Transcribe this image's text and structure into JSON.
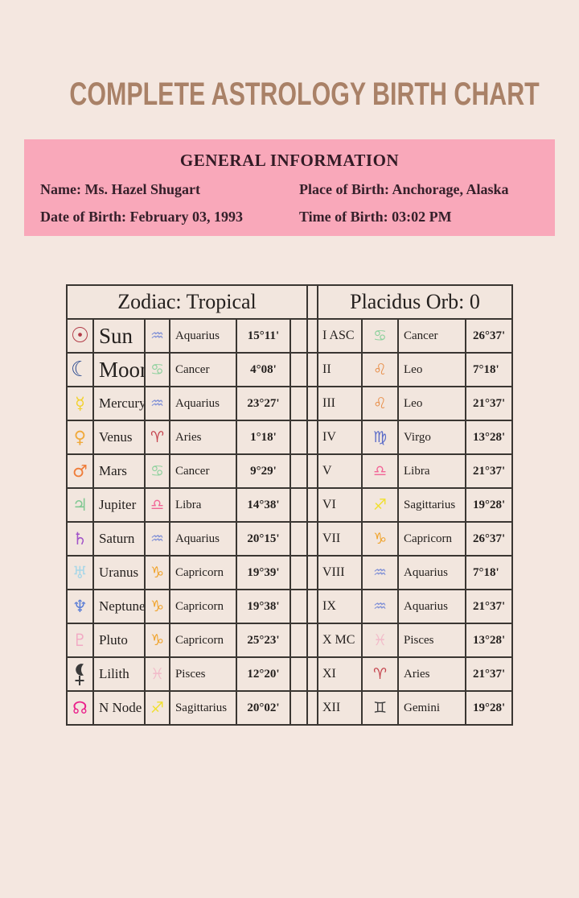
{
  "title": "COMPLETE ASTROLOGY BIRTH CHART",
  "general": {
    "heading": "GENERAL INFORMATION",
    "name": "Name: Ms. Hazel Shugart",
    "date_of_birth": "Date of Birth: February 03, 1993",
    "place_of_birth": "Place of Birth: Anchorage, Alaska",
    "time_of_birth": "Time of Birth: 03:02 PM"
  },
  "zodiac": {
    "header": "Zodiac: Tropical",
    "rows": [
      {
        "icon": "sun-icon",
        "glyph": "☉",
        "glyph_color": "#b23b47",
        "planet": "Sun",
        "sign_icon": "aquarius-icon",
        "sign_glyph": "♒",
        "sign_color": "#8191d6",
        "sign": "Aquarius",
        "degrees": "15°11'"
      },
      {
        "icon": "moon-icon",
        "glyph": "☾",
        "glyph_color": "#2f4e92",
        "planet": "Moon",
        "sign_icon": "cancer-icon",
        "sign_glyph": "♋",
        "sign_color": "#8fd19e",
        "sign": "Cancer",
        "degrees": "4°08'"
      },
      {
        "icon": "mercury-icon",
        "glyph": "☿",
        "glyph_color": "#f2d12e",
        "planet": "Mercury",
        "sign_icon": "aquarius-icon",
        "sign_glyph": "♒",
        "sign_color": "#8191d6",
        "sign": "Aquarius",
        "degrees": "23°27'"
      },
      {
        "icon": "venus-icon",
        "glyph": "♀",
        "glyph_color": "#f0a93a",
        "planet": "Venus",
        "sign_icon": "aries-icon",
        "sign_glyph": "♈",
        "sign_color": "#c4414b",
        "sign": "Aries",
        "degrees": "1°18'"
      },
      {
        "icon": "mars-icon",
        "glyph": "♂",
        "glyph_color": "#ef7d3a",
        "planet": "Mars",
        "sign_icon": "cancer-icon",
        "sign_glyph": "♋",
        "sign_color": "#8fd19e",
        "sign": "Cancer",
        "degrees": "9°29'"
      },
      {
        "icon": "jupiter-icon",
        "glyph": "♃",
        "glyph_color": "#82c893",
        "planet": "Jupiter",
        "sign_icon": "libra-icon",
        "sign_glyph": "♎",
        "sign_color": "#f26597",
        "sign": "Libra",
        "degrees": "14°38'"
      },
      {
        "icon": "saturn-icon",
        "glyph": "♄",
        "glyph_color": "#a254c8",
        "planet": "Saturn",
        "sign_icon": "aquarius-icon",
        "sign_glyph": "♒",
        "sign_color": "#8191d6",
        "sign": "Aquarius",
        "degrees": "20°15'"
      },
      {
        "icon": "uranus-icon",
        "glyph": "♅",
        "glyph_color": "#a9d7e8",
        "planet": "Uranus",
        "sign_icon": "capricorn-icon",
        "sign_glyph": "♑",
        "sign_color": "#f0a42e",
        "sign": "Capricorn",
        "degrees": "19°39'"
      },
      {
        "icon": "neptune-icon",
        "glyph": "♆",
        "glyph_color": "#5c7fd6",
        "planet": "Neptune",
        "sign_icon": "capricorn-icon",
        "sign_glyph": "♑",
        "sign_color": "#f0a42e",
        "sign": "Capricorn",
        "degrees": "19°38'"
      },
      {
        "icon": "pluto-icon",
        "glyph": "♇",
        "glyph_color": "#f2a9c4",
        "planet": "Pluto",
        "sign_icon": "capricorn-icon",
        "sign_glyph": "♑",
        "sign_color": "#f0a42e",
        "sign": "Capricorn",
        "degrees": "25°23'"
      },
      {
        "icon": "lilith-icon",
        "glyph": "⚸",
        "glyph_color": "#3a3a3a",
        "planet": "Lilith",
        "sign_icon": "pisces-icon",
        "sign_glyph": "♓",
        "sign_color": "#f2bcca",
        "sign": "Pisces",
        "degrees": "12°20'"
      },
      {
        "icon": "north-node-icon",
        "glyph": "☊",
        "glyph_color": "#ea1f8a",
        "planet": "N Node",
        "sign_icon": "sagittarius-icon",
        "sign_glyph": "♐",
        "sign_color": "#f0e030",
        "sign": "Sagittarius",
        "degrees": "20°02'"
      }
    ]
  },
  "houses": {
    "header": "Placidus Orb: 0",
    "rows": [
      {
        "house": "I ASC",
        "sign_icon": "cancer-icon",
        "sign_glyph": "♋",
        "sign_color": "#8fd19e",
        "sign": "Cancer",
        "degrees": "26°37'"
      },
      {
        "house": "II",
        "sign_icon": "leo-icon",
        "sign_glyph": "♌",
        "sign_color": "#e8914e",
        "sign": "Leo",
        "degrees": "7°18'"
      },
      {
        "house": "III",
        "sign_icon": "leo-icon",
        "sign_glyph": "♌",
        "sign_color": "#e8914e",
        "sign": "Leo",
        "degrees": "21°37'"
      },
      {
        "house": "IV",
        "sign_icon": "virgo-icon",
        "sign_glyph": "♍",
        "sign_color": "#5b6cc8",
        "sign": "Virgo",
        "degrees": "13°28'"
      },
      {
        "house": "V",
        "sign_icon": "libra-icon",
        "sign_glyph": "♎",
        "sign_color": "#f26597",
        "sign": "Libra",
        "degrees": "21°37'"
      },
      {
        "house": "VI",
        "sign_icon": "sagittarius-icon",
        "sign_glyph": "♐",
        "sign_color": "#f0e030",
        "sign": "Sagittarius",
        "degrees": "19°28'"
      },
      {
        "house": "VII",
        "sign_icon": "capricorn-icon",
        "sign_glyph": "♑",
        "sign_color": "#f0a42e",
        "sign": "Capricorn",
        "degrees": "26°37'"
      },
      {
        "house": "VIII",
        "sign_icon": "aquarius-icon",
        "sign_glyph": "♒",
        "sign_color": "#8191d6",
        "sign": "Aquarius",
        "degrees": "7°18'"
      },
      {
        "house": "IX",
        "sign_icon": "aquarius-icon",
        "sign_glyph": "♒",
        "sign_color": "#8191d6",
        "sign": "Aquarius",
        "degrees": "21°37'"
      },
      {
        "house": "X MC",
        "sign_icon": "pisces-icon",
        "sign_glyph": "♓",
        "sign_color": "#f2bcca",
        "sign": "Pisces",
        "degrees": "13°28'"
      },
      {
        "house": "XI",
        "sign_icon": "aries-icon",
        "sign_glyph": "♈",
        "sign_color": "#c4414b",
        "sign": "Aries",
        "degrees": "21°37'"
      },
      {
        "house": "XII",
        "sign_icon": "gemini-icon",
        "sign_glyph": "♊",
        "sign_color": "#3f3f3f",
        "sign": "Gemini",
        "degrees": "19°28'"
      }
    ]
  },
  "colors": {
    "page_bg": "#f4e7e0",
    "panel_pink": "#f9a8ba",
    "title_brown": "#a98167",
    "table_border": "#3a3632",
    "text_dark": "#24201e"
  }
}
